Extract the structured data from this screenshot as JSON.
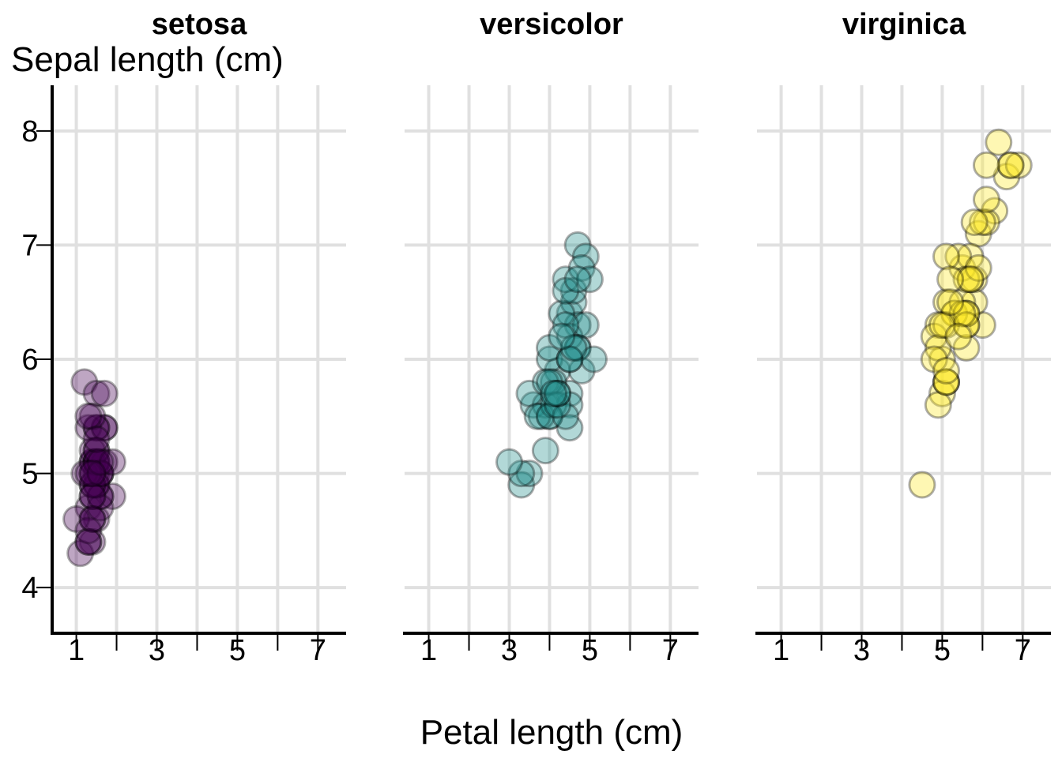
{
  "chart_data": {
    "type": "scatter",
    "xlabel": "Petal length (cm)",
    "ylabel": "Sepal length (cm)",
    "xlim": [
      0.4,
      7.7
    ],
    "ylim": [
      3.6,
      8.4
    ],
    "x_ticks": [
      1,
      3,
      5,
      7
    ],
    "x_minor_ticks": [
      2,
      4,
      6
    ],
    "y_ticks": [
      4,
      5,
      6,
      7,
      8
    ],
    "grid": true,
    "point_opacity": 0.35,
    "panels": [
      {
        "title": "setosa",
        "color": "#440154",
        "x": [
          1.4,
          1.4,
          1.3,
          1.5,
          1.4,
          1.7,
          1.4,
          1.5,
          1.4,
          1.5,
          1.5,
          1.6,
          1.4,
          1.1,
          1.2,
          1.5,
          1.3,
          1.4,
          1.7,
          1.5,
          1.7,
          1.5,
          1.0,
          1.7,
          1.9,
          1.6,
          1.6,
          1.5,
          1.4,
          1.6,
          1.6,
          1.5,
          1.5,
          1.4,
          1.5,
          1.2,
          1.3,
          1.4,
          1.3,
          1.5,
          1.3,
          1.3,
          1.3,
          1.6,
          1.9,
          1.4,
          1.6,
          1.4,
          1.5,
          1.4
        ],
        "y": [
          5.1,
          4.9,
          4.7,
          4.6,
          5.0,
          5.4,
          4.6,
          5.0,
          4.4,
          4.9,
          5.4,
          4.8,
          4.8,
          4.3,
          5.8,
          5.7,
          5.4,
          5.1,
          5.7,
          5.1,
          5.4,
          5.1,
          4.6,
          5.1,
          4.8,
          5.0,
          5.0,
          5.2,
          5.2,
          4.7,
          4.8,
          5.4,
          5.2,
          5.5,
          4.9,
          5.0,
          5.5,
          4.9,
          4.4,
          5.1,
          5.0,
          4.5,
          4.4,
          5.0,
          5.1,
          4.8,
          5.1,
          4.6,
          5.3,
          5.0
        ]
      },
      {
        "title": "versicolor",
        "color": "#21908C",
        "x": [
          4.7,
          4.5,
          4.9,
          4.0,
          4.6,
          4.5,
          4.7,
          3.3,
          4.6,
          3.9,
          3.5,
          4.2,
          4.0,
          4.7,
          3.6,
          4.4,
          4.5,
          4.1,
          4.5,
          3.9,
          4.8,
          4.0,
          4.9,
          4.7,
          4.3,
          4.4,
          4.8,
          5.0,
          4.5,
          3.5,
          3.8,
          3.7,
          3.9,
          5.1,
          4.5,
          4.5,
          4.7,
          4.4,
          4.1,
          4.0,
          4.4,
          4.6,
          4.0,
          3.3,
          4.2,
          4.2,
          4.2,
          4.3,
          3.0,
          4.1
        ],
        "y": [
          7.0,
          6.4,
          6.9,
          5.5,
          6.5,
          5.7,
          6.3,
          4.9,
          6.6,
          5.2,
          5.0,
          5.9,
          6.0,
          6.1,
          5.6,
          6.7,
          5.6,
          5.8,
          6.2,
          5.6,
          5.9,
          6.1,
          6.3,
          6.1,
          6.4,
          6.6,
          6.8,
          6.7,
          6.0,
          5.7,
          5.5,
          5.5,
          5.8,
          6.0,
          5.4,
          6.0,
          6.7,
          6.3,
          5.6,
          5.5,
          5.5,
          6.1,
          5.8,
          5.0,
          5.6,
          5.7,
          5.7,
          6.2,
          5.1,
          5.7
        ]
      },
      {
        "title": "virginica",
        "color": "#FDE725",
        "x": [
          6.0,
          5.1,
          5.9,
          5.6,
          5.8,
          6.6,
          4.5,
          6.3,
          5.8,
          6.1,
          5.1,
          5.3,
          5.5,
          5.0,
          5.1,
          5.3,
          5.5,
          6.7,
          6.9,
          5.0,
          5.7,
          4.9,
          6.7,
          4.9,
          5.7,
          6.0,
          4.8,
          4.9,
          5.6,
          5.8,
          6.1,
          6.4,
          5.6,
          5.1,
          5.6,
          6.1,
          5.6,
          5.5,
          4.8,
          5.4,
          5.6,
          5.1,
          5.1,
          5.9,
          5.7,
          5.2,
          5.0,
          5.2,
          5.4,
          5.1
        ],
        "y": [
          6.3,
          5.8,
          7.1,
          6.3,
          6.5,
          7.6,
          4.9,
          7.3,
          6.7,
          7.2,
          6.5,
          6.4,
          6.8,
          5.7,
          5.8,
          6.4,
          6.5,
          7.7,
          7.7,
          6.0,
          6.9,
          5.6,
          7.7,
          6.3,
          6.7,
          7.2,
          6.2,
          6.1,
          6.4,
          7.2,
          7.4,
          7.9,
          6.4,
          6.3,
          6.1,
          7.7,
          6.3,
          6.4,
          6.0,
          6.9,
          6.7,
          6.9,
          5.8,
          6.8,
          6.7,
          6.7,
          6.3,
          6.5,
          6.2,
          5.9
        ]
      }
    ]
  }
}
